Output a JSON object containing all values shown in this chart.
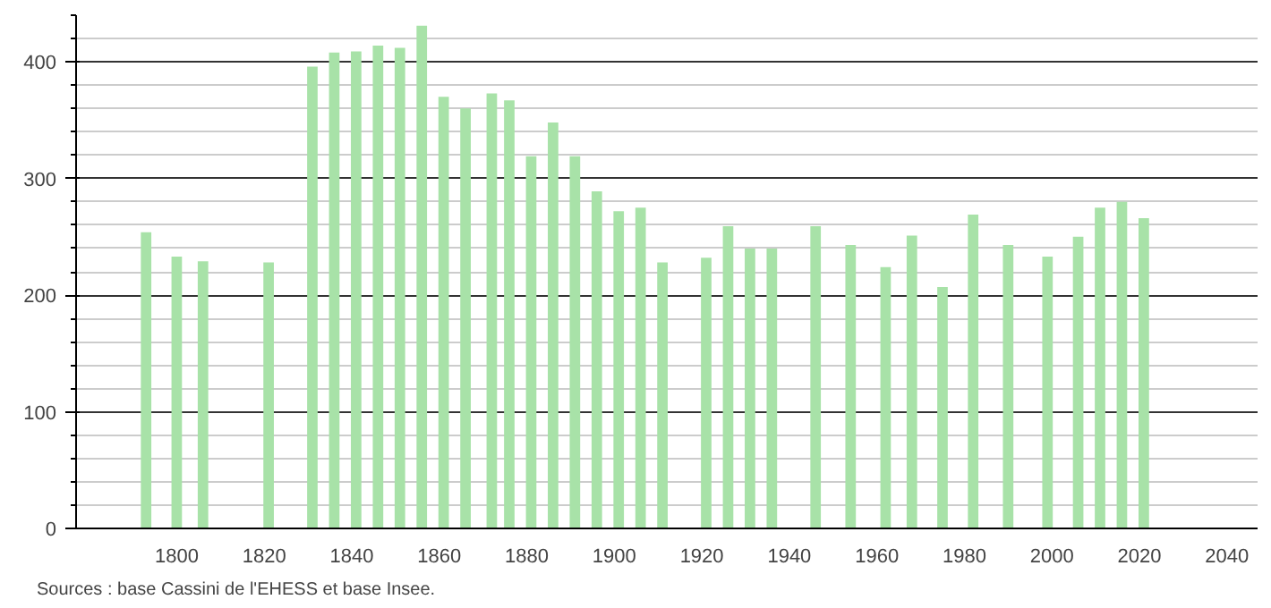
{
  "chart_data": {
    "type": "bar",
    "x": [
      1793,
      1800,
      1806,
      1821,
      1831,
      1836,
      1841,
      1846,
      1851,
      1856,
      1861,
      1866,
      1872,
      1876,
      1881,
      1886,
      1891,
      1896,
      1901,
      1906,
      1911,
      1921,
      1926,
      1931,
      1936,
      1946,
      1954,
      1962,
      1968,
      1975,
      1982,
      1990,
      1999,
      2006,
      2011,
      2016,
      2021
    ],
    "values": [
      254,
      233,
      229,
      228,
      396,
      408,
      409,
      414,
      412,
      431,
      370,
      360,
      373,
      367,
      319,
      348,
      319,
      289,
      272,
      275,
      228,
      232,
      259,
      240,
      240,
      259,
      243,
      224,
      251,
      207,
      269,
      243,
      233,
      250,
      275,
      280,
      266
    ],
    "color": "#a8e2a8",
    "xlim": [
      1777,
      2047
    ],
    "xticks": [
      1800,
      1820,
      1840,
      1860,
      1880,
      1900,
      1920,
      1940,
      1960,
      1980,
      2000,
      2020,
      2040
    ],
    "ylim": [
      0,
      440
    ],
    "yticks": [
      0,
      {
        "value": 20,
        "label": null
      },
      {
        "value": 40,
        "label": null
      },
      {
        "value": 60,
        "label": null
      },
      {
        "value": 80,
        "label": null
      },
      100,
      {
        "value": 120,
        "label": null
      },
      {
        "value": 140,
        "label": null
      },
      {
        "value": 160,
        "label": null
      },
      {
        "value": 180,
        "label": null
      },
      200,
      {
        "value": 220,
        "label": null
      },
      {
        "value": 240,
        "label": null
      },
      {
        "value": 260,
        "label": null
      },
      {
        "value": 280,
        "label": null
      },
      300,
      {
        "value": 320,
        "label": null
      },
      {
        "value": 340,
        "label": null
      },
      {
        "value": 360,
        "label": null
      },
      {
        "value": 380,
        "label": null
      },
      400,
      {
        "value": 420,
        "label": null
      },
      {
        "value": 440,
        "label": null
      }
    ],
    "grid": "y",
    "annotations": [
      "Sources : base Cassini de l'EHESS et base Insee."
    ]
  }
}
